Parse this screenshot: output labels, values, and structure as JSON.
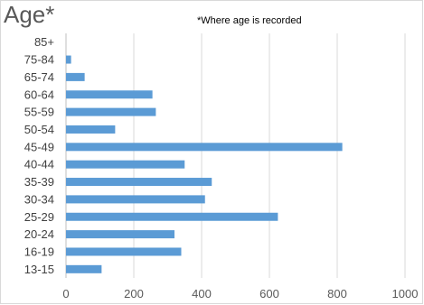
{
  "chart_data": {
    "type": "bar",
    "orientation": "horizontal",
    "title": "Age*",
    "annotation": "*Where age is recorded",
    "categories": [
      "85+",
      "75-84",
      "65-74",
      "60-64",
      "55-59",
      "50-54",
      "45-49",
      "40-44",
      "35-39",
      "30-34",
      "25-29",
      "20-24",
      "16-19",
      "13-15"
    ],
    "values": [
      0,
      15,
      55,
      255,
      265,
      145,
      815,
      350,
      430,
      410,
      625,
      320,
      340,
      105
    ],
    "xlim": [
      0,
      1000
    ],
    "xticks": [
      "0",
      "200",
      "400",
      "600",
      "800",
      "1000"
    ],
    "grid": true,
    "colors": {
      "bar": "#5b9bd5",
      "grid": "#d9d9d9"
    }
  }
}
